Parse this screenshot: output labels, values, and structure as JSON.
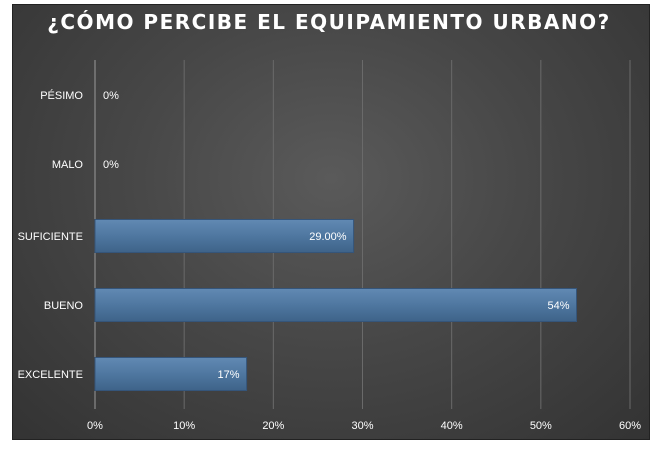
{
  "chart_data": {
    "type": "bar",
    "orientation": "horizontal",
    "title": "¿CÓMO PERCIBE EL EQUIPAMIENTO URBANO?",
    "categories": [
      "PÉSIMO",
      "MALO",
      "SUFICIENTE",
      "BUENO",
      "EXCELENTE"
    ],
    "values": [
      0,
      0,
      29,
      54,
      17
    ],
    "data_labels": [
      "0%",
      "0%",
      "29.00%",
      "54%",
      "17%"
    ],
    "xlim": [
      0,
      60
    ],
    "x_ticks": [
      "0%",
      "10%",
      "20%",
      "30%",
      "40%",
      "50%",
      "60%"
    ],
    "x_tick_values": [
      0,
      10,
      20,
      30,
      40,
      50,
      60
    ],
    "xlabel": "",
    "ylabel": "",
    "grid": true,
    "legend": "none",
    "colors": {
      "bar": "#4f77a0",
      "bar_edge": "#35557a",
      "background": "#474747",
      "text": "#ffffff",
      "grid": "#6a6a6a"
    }
  }
}
